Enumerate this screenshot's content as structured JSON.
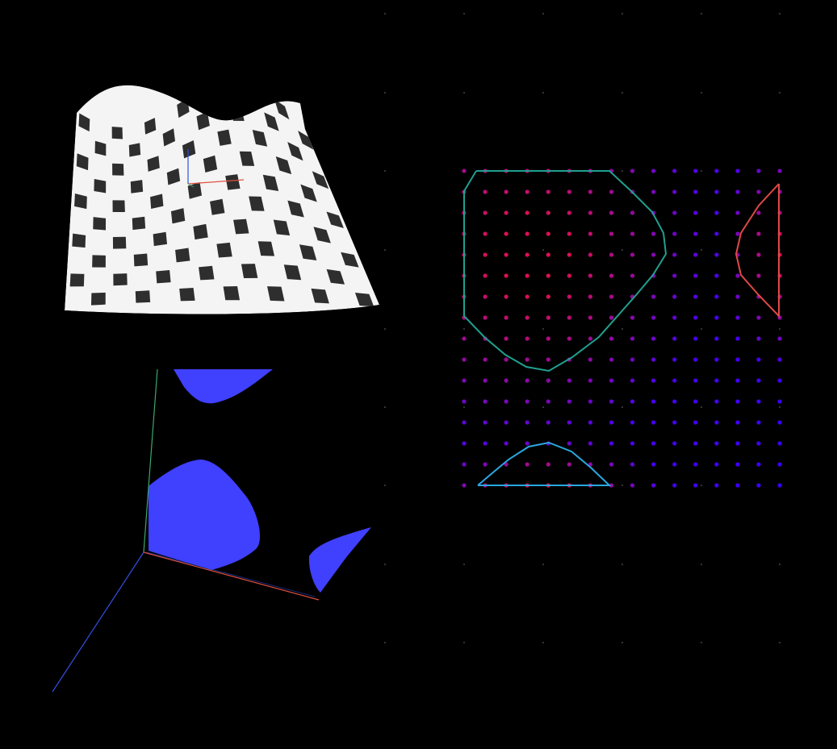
{
  "colors": {
    "background": "#000000",
    "checker_light": "#f4f4f4",
    "checker_dark": "#2e2e2e",
    "region_fill": "#4040ff",
    "axis_x": "#e05040",
    "axis_y": "#3aa870",
    "axis_z": "#3050e0",
    "contour_large": "#20a090",
    "contour_right": "#e04848",
    "contour_bottom": "#2aa8e0",
    "grid_marker": "#333333",
    "point_hot": "#e01050",
    "point_cold": "#3a00ff"
  },
  "views": {
    "surface": {
      "name": "checkered-height-surface"
    },
    "regions": {
      "name": "blue-regions-with-axes"
    },
    "contours": {
      "name": "scalar-field-contour-map",
      "grid_cols": 16,
      "grid_rows": 16,
      "field_range": [
        0,
        1
      ]
    }
  }
}
